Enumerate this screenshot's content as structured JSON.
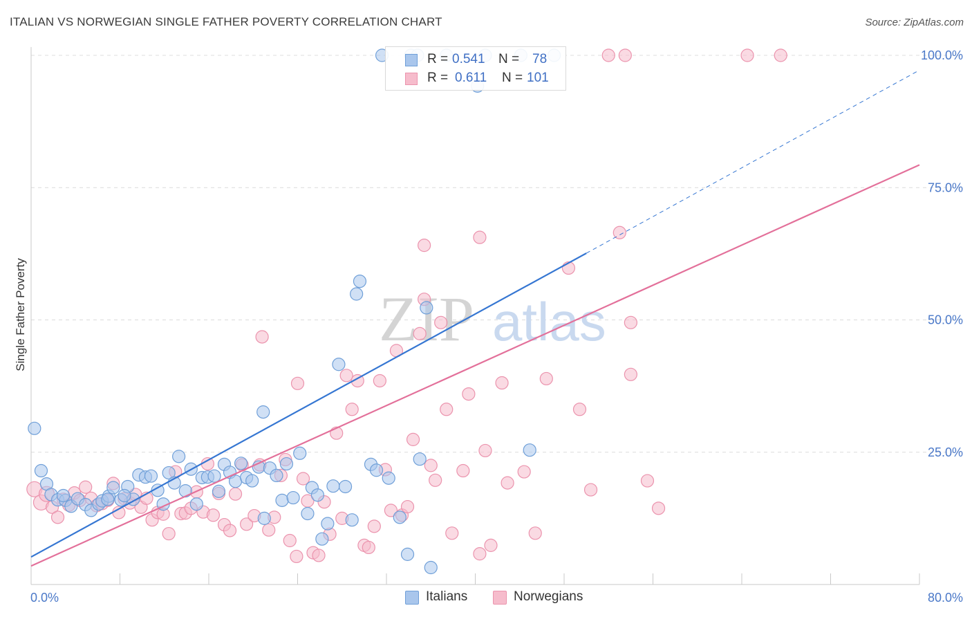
{
  "title": "ITALIAN VS NORWEGIAN SINGLE FATHER POVERTY CORRELATION CHART",
  "source": "Source: ZipAtlas.com",
  "watermark": {
    "part1": "ZIP",
    "part2": "atlas"
  },
  "colors": {
    "italians_fill": "#a9c6ec",
    "italians_stroke": "#6f9fd8",
    "italians_line": "#3576d2",
    "norwegians_fill": "#f6bccc",
    "norwegians_stroke": "#eb93ad",
    "norwegians_line": "#e3709a",
    "axis_label": "#4a78c8",
    "grid": "#dcdcdc"
  },
  "legend_top": {
    "rows": [
      {
        "r_label": "R =",
        "r_value": "0.541",
        "n_label": "N =",
        "n_value": "78"
      },
      {
        "r_label": "R =",
        "r_value": "0.611",
        "n_label": "N =",
        "n_value": "101"
      }
    ]
  },
  "legend_bottom": {
    "italians": "Italians",
    "norwegians": "Norwegians"
  },
  "chart_data": {
    "type": "scatter",
    "ylabel": "Single Father Poverty",
    "xlabel": "",
    "xlim": [
      0,
      80
    ],
    "ylim": [
      0,
      100
    ],
    "x_tick_labels": [
      "0.0%",
      "80.0%"
    ],
    "y_tick_labels": [
      "25.0%",
      "50.0%",
      "75.0%",
      "100.0%"
    ],
    "y_ticks": [
      25,
      50,
      75,
      100
    ],
    "grid": true,
    "series": [
      {
        "name": "Italians",
        "R": 0.541,
        "N": 78,
        "trend": {
          "x0": 0,
          "y0": 5.2,
          "x1": 50,
          "y1": 62.6,
          "dashed_to_x": 80,
          "dashed_to_y": 97.2
        },
        "points": [
          [
            0.3,
            29.5
          ],
          [
            0.9,
            21.5
          ],
          [
            1.4,
            19
          ],
          [
            1.8,
            17
          ],
          [
            2.4,
            16
          ],
          [
            3.1,
            15.9
          ],
          [
            3.6,
            14.8
          ],
          [
            4.2,
            16.2
          ],
          [
            4.9,
            15.1
          ],
          [
            5.4,
            14
          ],
          [
            6.1,
            15.2
          ],
          [
            6.4,
            15.8
          ],
          [
            7.0,
            16.7
          ],
          [
            7.4,
            18.3
          ],
          [
            8.1,
            16
          ],
          [
            8.7,
            18.5
          ],
          [
            9.2,
            16.1
          ],
          [
            9.7,
            20.7
          ],
          [
            10.3,
            20.3
          ],
          [
            10.8,
            20.5
          ],
          [
            11.4,
            17.8
          ],
          [
            11.9,
            15.2
          ],
          [
            12.4,
            21.1
          ],
          [
            12.9,
            19.2
          ],
          [
            13.3,
            24.2
          ],
          [
            13.9,
            17.7
          ],
          [
            14.4,
            21.8
          ],
          [
            14.9,
            15.2
          ],
          [
            15.4,
            20.2
          ],
          [
            15.9,
            20.3
          ],
          [
            16.5,
            20.5
          ],
          [
            16.9,
            17.6
          ],
          [
            17.4,
            22.7
          ],
          [
            17.9,
            21.2
          ],
          [
            18.4,
            19.5
          ],
          [
            18.9,
            22.9
          ],
          [
            19.4,
            20.2
          ],
          [
            19.9,
            19.6
          ],
          [
            20.5,
            22.2
          ],
          [
            21.0,
            12.5
          ],
          [
            20.9,
            32.6
          ],
          [
            21.5,
            22
          ],
          [
            22.1,
            20.6
          ],
          [
            22.6,
            15.9
          ],
          [
            23.0,
            22.8
          ],
          [
            23.6,
            16.4
          ],
          [
            24.2,
            24.8
          ],
          [
            24.9,
            13.4
          ],
          [
            25.3,
            18.3
          ],
          [
            25.8,
            16.9
          ],
          [
            26.2,
            8.6
          ],
          [
            26.7,
            11.5
          ],
          [
            27.2,
            18.6
          ],
          [
            27.7,
            41.6
          ],
          [
            28.3,
            18.5
          ],
          [
            28.9,
            12.2
          ],
          [
            29.3,
            54.9
          ],
          [
            29.6,
            57.3
          ],
          [
            30.6,
            22.7
          ],
          [
            31.1,
            21.6
          ],
          [
            32.2,
            20.1
          ],
          [
            33.2,
            12.7
          ],
          [
            35.0,
            23.7
          ],
          [
            35.6,
            52.3
          ],
          [
            36.0,
            3.2
          ],
          [
            33.9,
            5.7
          ],
          [
            44.9,
            25.4
          ],
          [
            31.6,
            100
          ],
          [
            34.2,
            100
          ],
          [
            34.8,
            100
          ],
          [
            37.4,
            100
          ],
          [
            40.9,
            100
          ],
          [
            47.1,
            100
          ],
          [
            44.1,
            100
          ],
          [
            40.2,
            94.2
          ],
          [
            2.9,
            16.8
          ],
          [
            6.9,
            16.1
          ],
          [
            8.4,
            16.8
          ]
        ]
      },
      {
        "name": "Norwegians",
        "R": 0.611,
        "N": 101,
        "trend": {
          "x0": 0,
          "y0": 3.5,
          "x1": 80,
          "y1": 79.3
        },
        "points": [
          [
            0.3,
            18
          ],
          [
            0.9,
            15.5
          ],
          [
            1.4,
            17.1
          ],
          [
            1.9,
            14.6
          ],
          [
            2.4,
            12.7
          ],
          [
            2.9,
            16.1
          ],
          [
            3.4,
            15
          ],
          [
            3.9,
            17.3
          ],
          [
            4.4,
            15.9
          ],
          [
            4.9,
            18.4
          ],
          [
            5.4,
            16.3
          ],
          [
            5.9,
            14.9
          ],
          [
            6.4,
            15.3
          ],
          [
            6.9,
            15.9
          ],
          [
            7.4,
            19.1
          ],
          [
            7.9,
            13.6
          ],
          [
            8.4,
            16.2
          ],
          [
            8.9,
            15.4
          ],
          [
            9.4,
            17
          ],
          [
            9.9,
            14.6
          ],
          [
            10.4,
            16.3
          ],
          [
            10.9,
            12.2
          ],
          [
            11.4,
            13.6
          ],
          [
            11.9,
            13.3
          ],
          [
            12.4,
            9.6
          ],
          [
            13.0,
            21.3
          ],
          [
            13.5,
            13.4
          ],
          [
            13.9,
            13.5
          ],
          [
            14.4,
            14.4
          ],
          [
            14.9,
            17.5
          ],
          [
            15.5,
            13.7
          ],
          [
            15.9,
            22.8
          ],
          [
            16.4,
            13.1
          ],
          [
            16.9,
            17.2
          ],
          [
            17.4,
            11.3
          ],
          [
            17.9,
            10.2
          ],
          [
            18.4,
            17.1
          ],
          [
            19.0,
            22.6
          ],
          [
            19.4,
            11.4
          ],
          [
            20.1,
            13
          ],
          [
            20.6,
            22.6
          ],
          [
            20.8,
            46.8
          ],
          [
            21.4,
            10.3
          ],
          [
            21.9,
            12.7
          ],
          [
            22.5,
            20.6
          ],
          [
            22.9,
            23.6
          ],
          [
            23.3,
            8.3
          ],
          [
            23.9,
            5.3
          ],
          [
            24.0,
            38
          ],
          [
            24.5,
            20
          ],
          [
            24.9,
            15.8
          ],
          [
            25.4,
            6
          ],
          [
            25.9,
            5.5
          ],
          [
            26.4,
            15.6
          ],
          [
            26.9,
            9.5
          ],
          [
            27.5,
            28.6
          ],
          [
            28.0,
            12.5
          ],
          [
            28.4,
            39.5
          ],
          [
            28.9,
            33.1
          ],
          [
            29.4,
            38.5
          ],
          [
            30.0,
            7.4
          ],
          [
            30.4,
            7
          ],
          [
            30.9,
            11
          ],
          [
            31.4,
            38.5
          ],
          [
            31.9,
            21.7
          ],
          [
            32.4,
            14
          ],
          [
            32.9,
            44.2
          ],
          [
            33.4,
            13.1
          ],
          [
            33.9,
            14.7
          ],
          [
            34.4,
            27.4
          ],
          [
            35.0,
            47.4
          ],
          [
            35.4,
            53.9
          ],
          [
            36.0,
            22.5
          ],
          [
            36.4,
            19.7
          ],
          [
            36.9,
            49.5
          ],
          [
            37.4,
            33.1
          ],
          [
            37.9,
            9.7
          ],
          [
            38.9,
            21.5
          ],
          [
            39.4,
            36
          ],
          [
            40.4,
            65.6
          ],
          [
            40.4,
            5.8
          ],
          [
            40.9,
            25.3
          ],
          [
            41.4,
            7.4
          ],
          [
            42.4,
            38.1
          ],
          [
            42.9,
            19.2
          ],
          [
            44.4,
            21.3
          ],
          [
            45.4,
            9.7
          ],
          [
            46.4,
            38.9
          ],
          [
            48.4,
            59.8
          ],
          [
            49.4,
            33.1
          ],
          [
            50.4,
            17.9
          ],
          [
            53.0,
            66.5
          ],
          [
            54.0,
            49.5
          ],
          [
            54.0,
            39.7
          ],
          [
            55.5,
            19.6
          ],
          [
            35.4,
            64.1
          ],
          [
            56.5,
            14.4
          ],
          [
            53.5,
            100
          ],
          [
            52.0,
            100
          ],
          [
            67.5,
            100
          ],
          [
            64.5,
            100
          ]
        ]
      }
    ]
  }
}
